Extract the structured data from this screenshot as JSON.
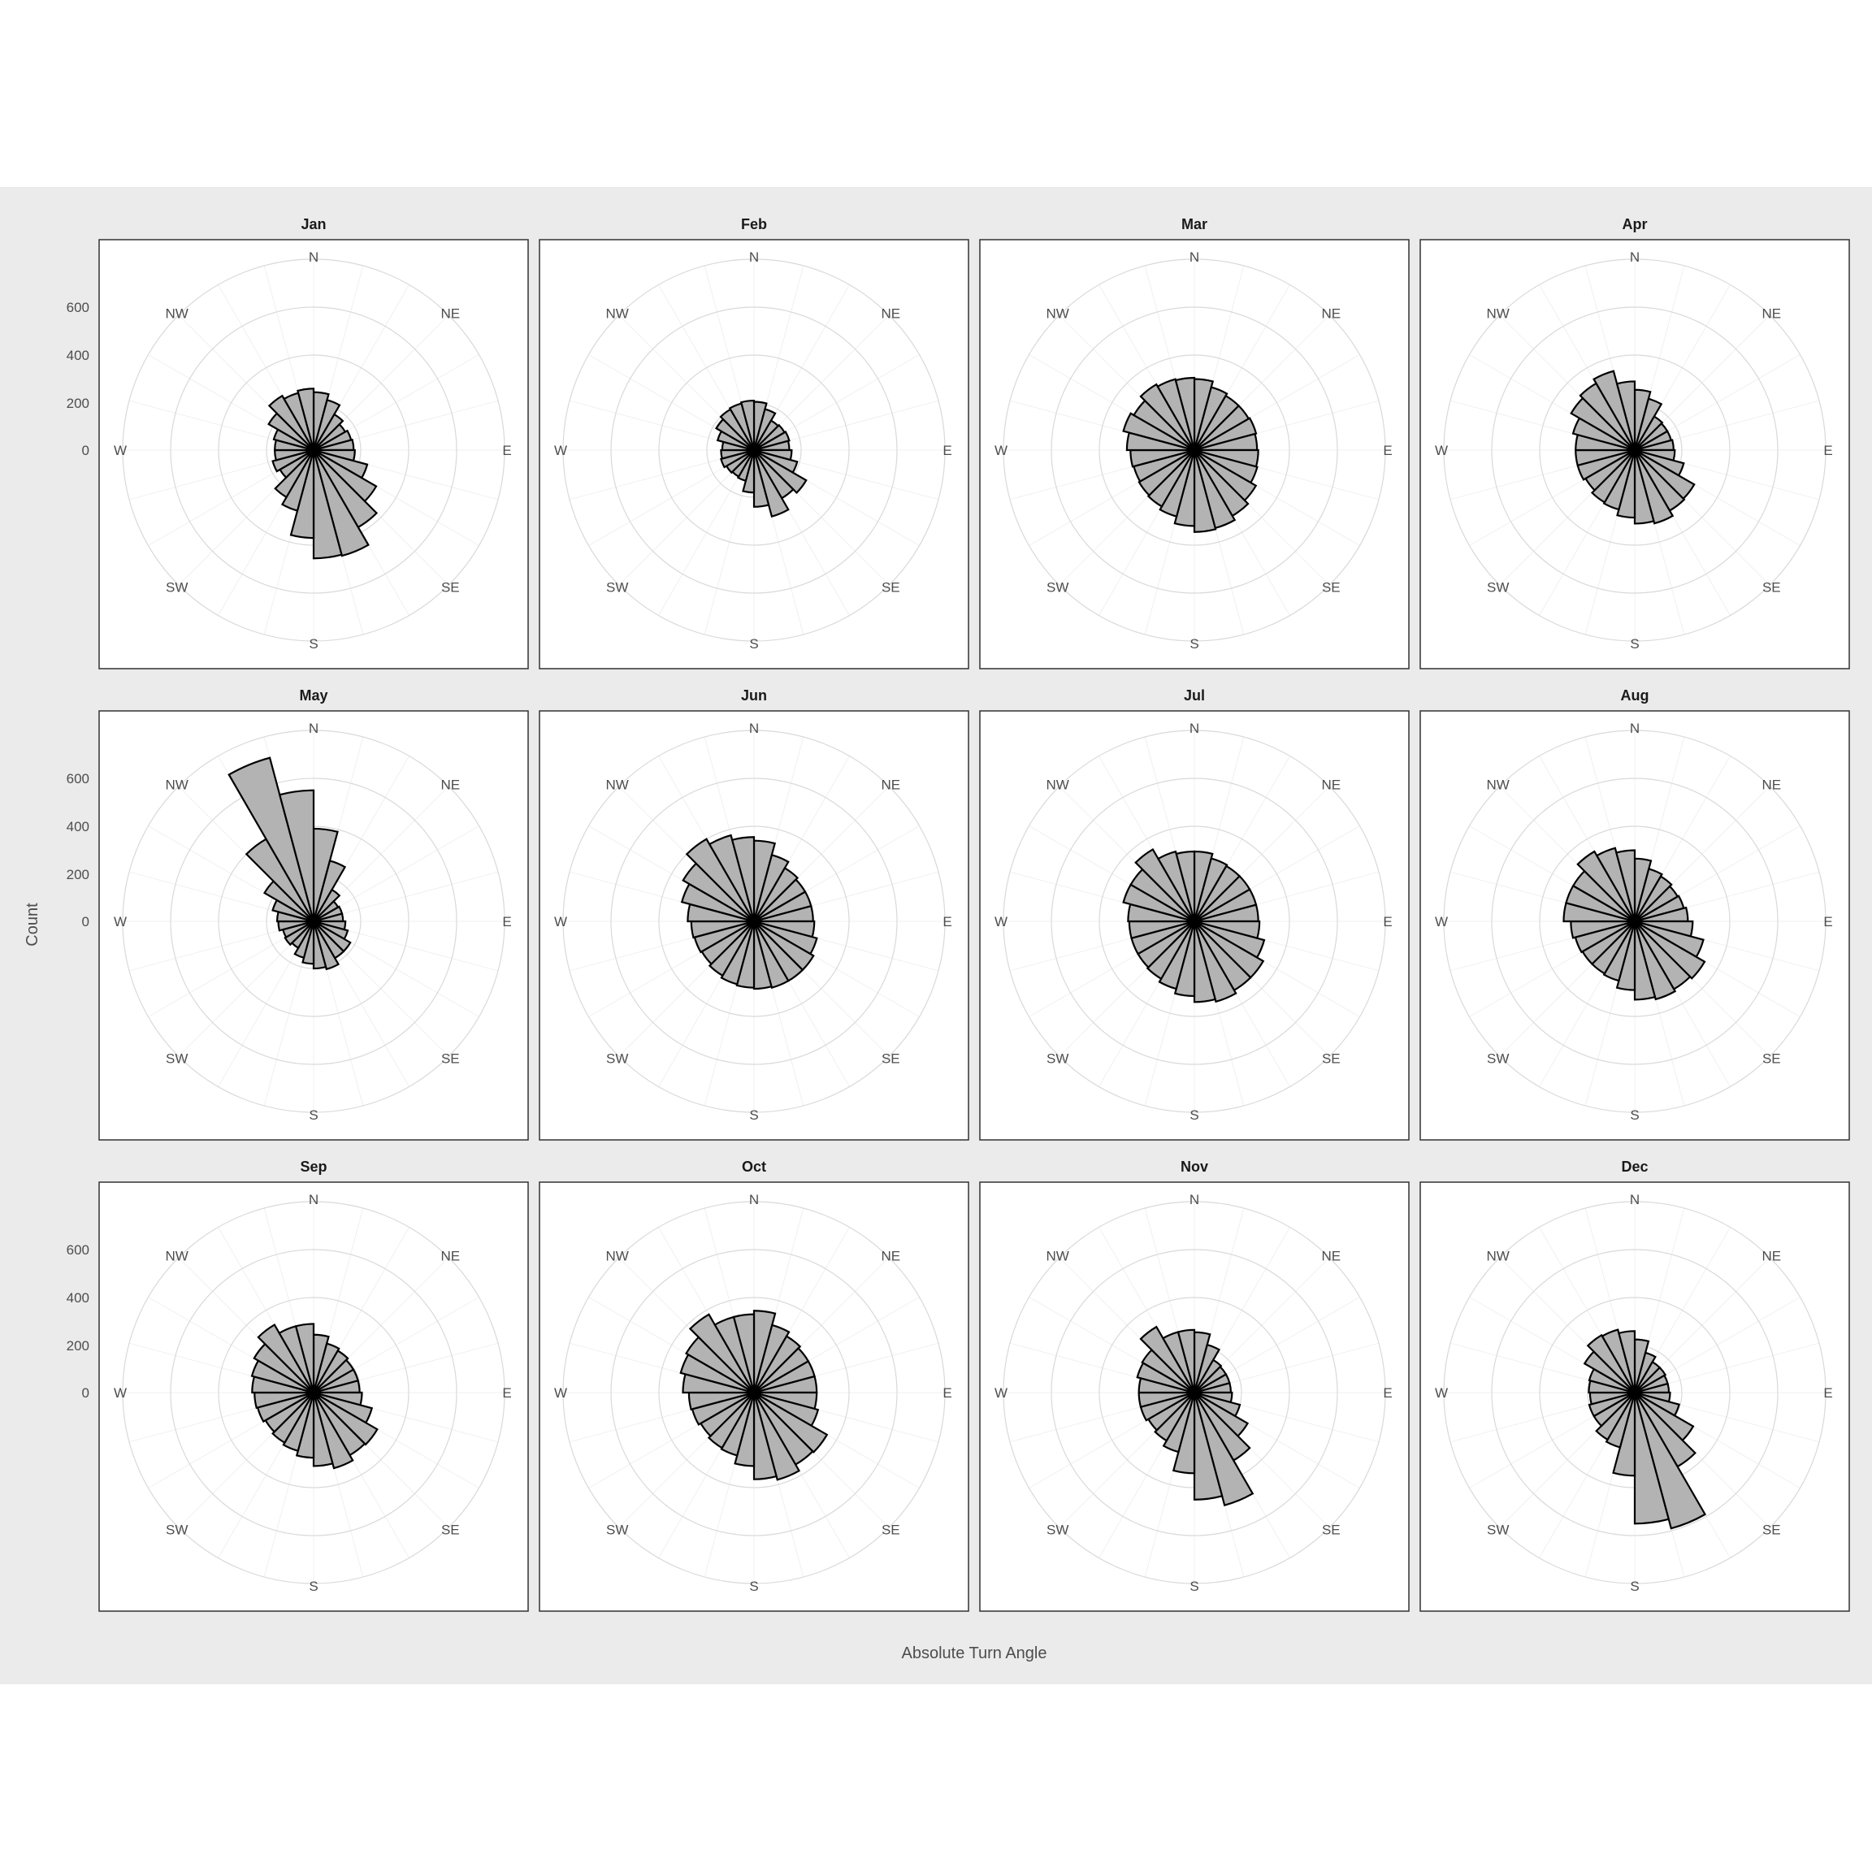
{
  "chart_data": {
    "type": "bar",
    "subtype": "polar-rose",
    "xlabel": "Absolute Turn Angle",
    "ylabel": "Count",
    "ylim": [
      0,
      800
    ],
    "y_ticks": [
      0,
      200,
      400,
      600
    ],
    "compass_labels": [
      "N",
      "NE",
      "E",
      "SE",
      "S",
      "SW",
      "W",
      "NW"
    ],
    "bins": 24,
    "bin_width_deg": 15,
    "grid": true,
    "legend": "none",
    "colors": {
      "bar_fill": "#b3b3b3",
      "bar_stroke": "#000000",
      "grid": "#d9d9d9",
      "panel_background": "#ebebeb",
      "text": "#4d4d4d"
    },
    "panels": [
      {
        "month": "Jan",
        "values": [
          245,
          220,
          175,
          155,
          165,
          170,
          175,
          235,
          305,
          375,
          460,
          455,
          370,
          265,
          230,
          165,
          180,
          165,
          165,
          175,
          220,
          265,
          250,
          260
        ]
      },
      {
        "month": "Feb",
        "values": [
          205,
          180,
          145,
          150,
          155,
          150,
          160,
          190,
          255,
          235,
          290,
          240,
          180,
          135,
          130,
          135,
          145,
          140,
          135,
          160,
          185,
          200,
          205,
          210
        ]
      },
      {
        "month": "Mar",
        "values": [
          300,
          275,
          265,
          265,
          270,
          265,
          270,
          275,
          300,
          320,
          340,
          345,
          320,
          290,
          275,
          270,
          265,
          270,
          285,
          310,
          295,
          320,
          310,
          305
        ]
      },
      {
        "month": "Apr",
        "values": [
          255,
          225,
          165,
          160,
          160,
          165,
          170,
          215,
          290,
          295,
          320,
          310,
          285,
          260,
          255,
          240,
          250,
          250,
          250,
          270,
          310,
          325,
          345,
          290
        ]
      },
      {
        "month": "May",
        "values": [
          390,
          265,
          155,
          120,
          125,
          125,
          135,
          150,
          180,
          180,
          210,
          200,
          180,
          160,
          130,
          140,
          135,
          150,
          155,
          180,
          240,
          400,
          710,
          550
        ]
      },
      {
        "month": "Jun",
        "values": [
          340,
          290,
          260,
          250,
          250,
          250,
          255,
          275,
          290,
          290,
          290,
          285,
          280,
          275,
          265,
          255,
          260,
          265,
          280,
          315,
          345,
          400,
          375,
          355
        ]
      },
      {
        "month": "Jul",
        "values": [
          295,
          275,
          270,
          270,
          270,
          270,
          275,
          305,
          335,
          335,
          350,
          340,
          315,
          295,
          280,
          275,
          275,
          275,
          280,
          310,
          310,
          350,
          305,
          295
        ]
      },
      {
        "month": "Aug",
        "values": [
          265,
          230,
          220,
          210,
          215,
          225,
          245,
          300,
          340,
          330,
          340,
          330,
          290,
          260,
          255,
          255,
          260,
          270,
          300,
          300,
          300,
          340,
          320,
          300
        ]
      },
      {
        "month": "Sep",
        "values": [
          245,
          215,
          205,
          195,
          195,
          195,
          205,
          255,
          310,
          305,
          330,
          310,
          275,
          255,
          245,
          235,
          245,
          250,
          260,
          270,
          290,
          330,
          290,
          290
        ]
      },
      {
        "month": "Oct",
        "values": [
          345,
          295,
          275,
          265,
          265,
          265,
          265,
          280,
          355,
          350,
          380,
          365,
          310,
          275,
          270,
          260,
          270,
          275,
          300,
          320,
          330,
          380,
          330,
          330
        ]
      },
      {
        "month": "Nov",
        "values": [
          255,
          210,
          160,
          155,
          155,
          155,
          160,
          200,
          260,
          330,
          490,
          450,
          340,
          260,
          235,
          225,
          235,
          235,
          235,
          250,
          255,
          320,
          265,
          265
        ]
      },
      {
        "month": "Dec",
        "values": [
          225,
          175,
          150,
          150,
          145,
          145,
          150,
          195,
          285,
          360,
          590,
          550,
          350,
          240,
          230,
          200,
          200,
          190,
          195,
          200,
          245,
          280,
          275,
          260
        ]
      }
    ]
  }
}
